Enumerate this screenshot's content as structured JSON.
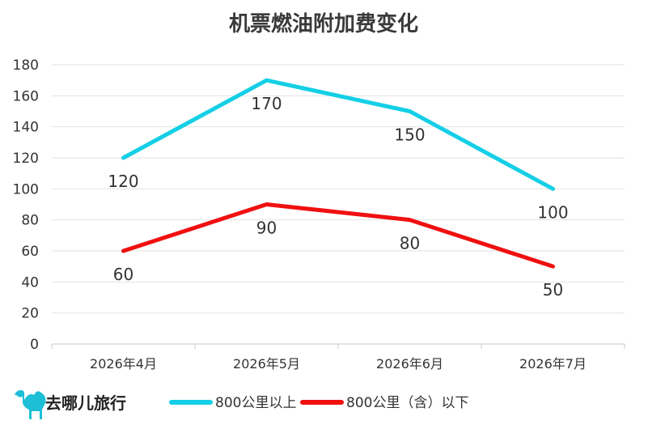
{
  "brand": {
    "name": "去哪儿旅行",
    "logo_icon": "camel-icon",
    "logo_color": "#1cbfd6"
  },
  "chart_data": {
    "type": "line",
    "title": "机票燃油附加费变化",
    "categories": [
      "2026年4月",
      "2026年5月",
      "2026年6月",
      "2026年7月"
    ],
    "series": [
      {
        "name": "800公里以上",
        "values": [
          120,
          170,
          150,
          100
        ],
        "color": "#14cfe6"
      },
      {
        "name": "800公里（含）以下",
        "values": [
          60,
          90,
          80,
          50
        ],
        "color": "#f01010"
      }
    ],
    "yticks": [
      "0",
      "20",
      "40",
      "60",
      "80",
      "100",
      "120",
      "140",
      "160",
      "180"
    ],
    "ylim": [
      0,
      180
    ],
    "grid": true,
    "legend": "bottom"
  }
}
